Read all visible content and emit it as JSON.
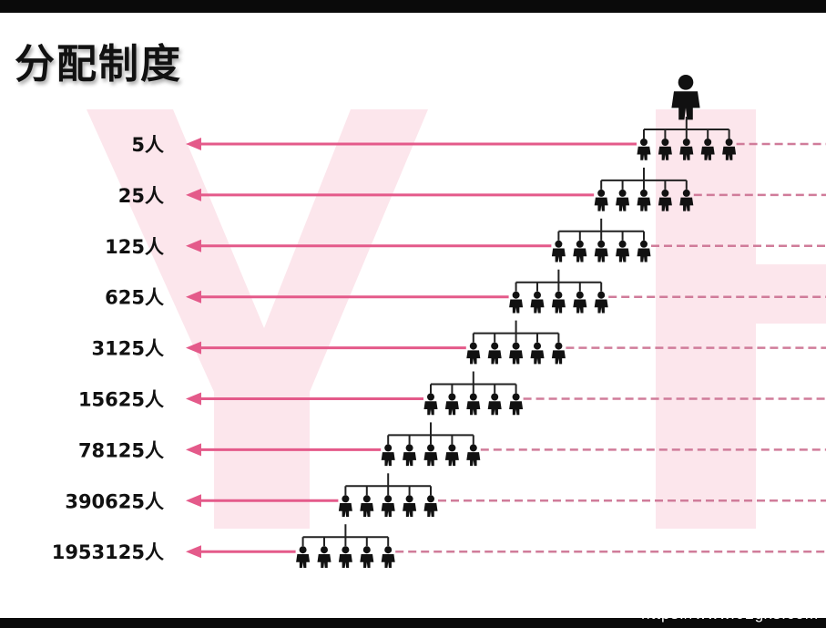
{
  "title": "分配制度",
  "watermark_url": "https://www.02gxs.com",
  "colors": {
    "arrow": "#e45a8a",
    "dashed": "#d07c9a",
    "watermark_letters": "#fbe3ea",
    "tree": "#222222"
  },
  "levels": [
    {
      "label": "5人"
    },
    {
      "label": "25人"
    },
    {
      "label": "125人"
    },
    {
      "label": "625人"
    },
    {
      "label": "3125人"
    },
    {
      "label": "15625人"
    },
    {
      "label": "78125人"
    },
    {
      "label": "390625人"
    },
    {
      "label": "1953125人"
    }
  ],
  "children_per_node": 5,
  "icons": {
    "top": "person-icon",
    "child": "person-icon"
  }
}
